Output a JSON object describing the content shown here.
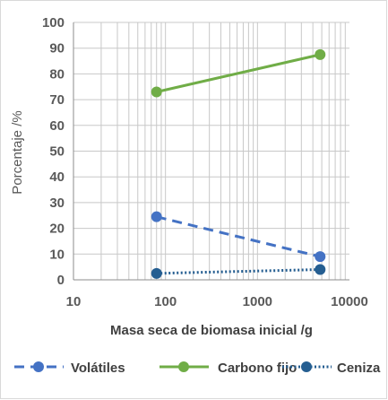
{
  "chart_data": {
    "type": "line",
    "xscale": "log",
    "xlim": [
      10,
      10000
    ],
    "ylim": [
      0,
      100
    ],
    "xlabel": "Masa seca de biomasa inicial /g",
    "ylabel": "Porcentaje /%",
    "x_ticks": [
      "10",
      "100",
      "1000",
      "10000"
    ],
    "y_ticks": [
      "0",
      "10",
      "20",
      "30",
      "40",
      "50",
      "60",
      "70",
      "80",
      "90",
      "100"
    ],
    "grid": true,
    "legend_position": "bottom",
    "series": [
      {
        "name": "Volátiles",
        "x": [
          80,
          4800
        ],
        "values": [
          24.5,
          9
        ],
        "color": "#4472c4",
        "line_style": "dashed"
      },
      {
        "name": "Carbono fijo",
        "x": [
          80,
          4800
        ],
        "values": [
          73,
          87.5
        ],
        "color": "#70ad47",
        "line_style": "solid"
      },
      {
        "name": "Ceniza",
        "x": [
          80,
          4800
        ],
        "values": [
          2.5,
          4
        ],
        "color": "#255e91",
        "line_style": "dotted"
      }
    ]
  }
}
